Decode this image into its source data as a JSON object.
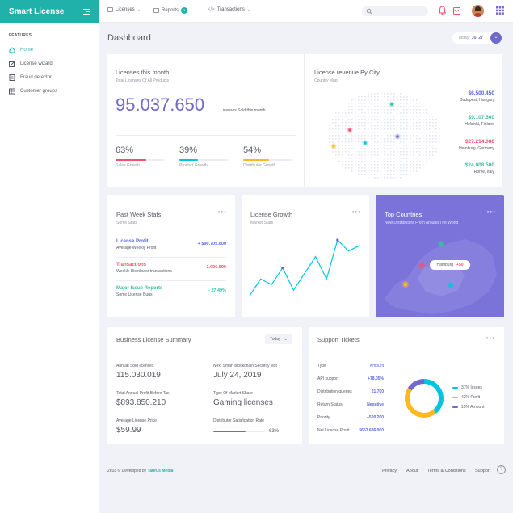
{
  "brand": {
    "name": "Smart License"
  },
  "topnav": {
    "licenses": "Licenses",
    "reports": "Reports",
    "reports_badge": "3",
    "transactions": "Transactions"
  },
  "sidebar": {
    "heading": "FEATURES",
    "items": [
      {
        "label": "Home"
      },
      {
        "label": "License wizard"
      },
      {
        "label": "Fraud detector"
      },
      {
        "label": "Customer groups"
      }
    ]
  },
  "page": {
    "title": "Dashboard",
    "date_label": "Today:",
    "date_value": "Jul 27"
  },
  "licenses_month": {
    "title": "Licenses this month",
    "subtitle": "Total Licenses Of All Products",
    "value": "95.037.650",
    "value_caption": "Licenses Sold this month",
    "metrics": [
      {
        "pct": "63%",
        "label": "Sales Growth",
        "fill": 0.63,
        "color": "#f4516c"
      },
      {
        "pct": "39%",
        "label": "Product Growth",
        "fill": 0.39,
        "color": "#00c5dc"
      },
      {
        "pct": "54%",
        "label": "Distributor Growth",
        "fill": 0.54,
        "color": "#ffb822"
      }
    ]
  },
  "revenue": {
    "title": "License revenue By City",
    "subtitle": "Country Map",
    "cities": [
      {
        "value": "$6.500.450",
        "city": "Budapest, Hungary",
        "color": "#5867dd"
      },
      {
        "value": "$9.107.500",
        "city": "Helsinki, Finland",
        "color": "#34bfa3"
      },
      {
        "value": "$27.214.080",
        "city": "Hamburg, Germany",
        "color": "#f4516c"
      },
      {
        "value": "$24,008.500",
        "city": "Rome, Italy",
        "color": "#34bfa3"
      }
    ]
  },
  "week_stats": {
    "title": "Past Week Stats",
    "subtitle": "Some Stats",
    "items": [
      {
        "name": "License Profit",
        "desc": "Average Weekly Profit",
        "value": "+ $90.705.800",
        "color": "#5867dd"
      },
      {
        "name": "Transactions",
        "desc": "Weekly Distributor transactions",
        "value": "+ 1.000.800",
        "color": "#f4516c"
      },
      {
        "name": "Major Issue Reports",
        "desc": "Some License Bugs",
        "value": "- 27.49%",
        "color": "#34bfa3"
      }
    ]
  },
  "growth": {
    "title": "License Growth",
    "subtitle": "Market Stats",
    "chart_data": {
      "type": "line",
      "values": [
        2,
        5,
        4,
        7,
        3,
        6,
        9,
        5,
        12,
        10,
        11
      ]
    }
  },
  "top_countries": {
    "title": "Top Countries",
    "subtitle": "New Distributors From Around The World",
    "callout_city": "Hamburg",
    "callout_value": "+50"
  },
  "summary": {
    "title": "Business License Summary",
    "filter": "Today",
    "items": [
      {
        "label": "Annual Sold licenses",
        "value": "115.030.019"
      },
      {
        "label": "Next Smart blockchain Security test",
        "value": "July 24, 2019"
      },
      {
        "label": "Total Annual Profit Before Tax",
        "value": "$893.850.210"
      },
      {
        "label": "Type Of Market Share",
        "value": "Gaming licenses"
      },
      {
        "label": "Average License Price",
        "value": "$59.99"
      },
      {
        "label": "Distributor Satisfication Rate",
        "value": "63%",
        "fill": 0.63
      }
    ]
  },
  "tickets": {
    "title": "Support Tickets",
    "header_type": "Type",
    "header_amount": "Amount",
    "rows": [
      {
        "type": "API support",
        "amount": "+78.05%",
        "color": "#5867dd"
      },
      {
        "type": "Distribution queries",
        "amount": "21,700",
        "color": "#5867dd"
      },
      {
        "type": "Return Status",
        "amount": "Negative",
        "color": "#5867dd"
      },
      {
        "type": "Priority",
        "amount": "+500,200",
        "color": "#5867dd"
      },
      {
        "type": "Net License Profit",
        "amount": "$653.636.000",
        "color": "#5867dd"
      }
    ],
    "chart_data": {
      "type": "pie",
      "slices": [
        {
          "name": "37% Issues",
          "value": 37,
          "color": "#00c5dc"
        },
        {
          "name": "42% Profit",
          "value": 42,
          "color": "#ffb822"
        },
        {
          "name": "15% Amount",
          "value": 15,
          "color": "#716aca"
        }
      ]
    }
  },
  "footer": {
    "copyright": "2018 © Developed by",
    "company": "Taurus Media",
    "links": [
      "Privacy",
      "About",
      "Terms & Conditions",
      "Support"
    ],
    "help": "?"
  },
  "colors": {
    "brand": "#20b2aa",
    "accent": "#716aca",
    "purple": "#7b73d9"
  }
}
